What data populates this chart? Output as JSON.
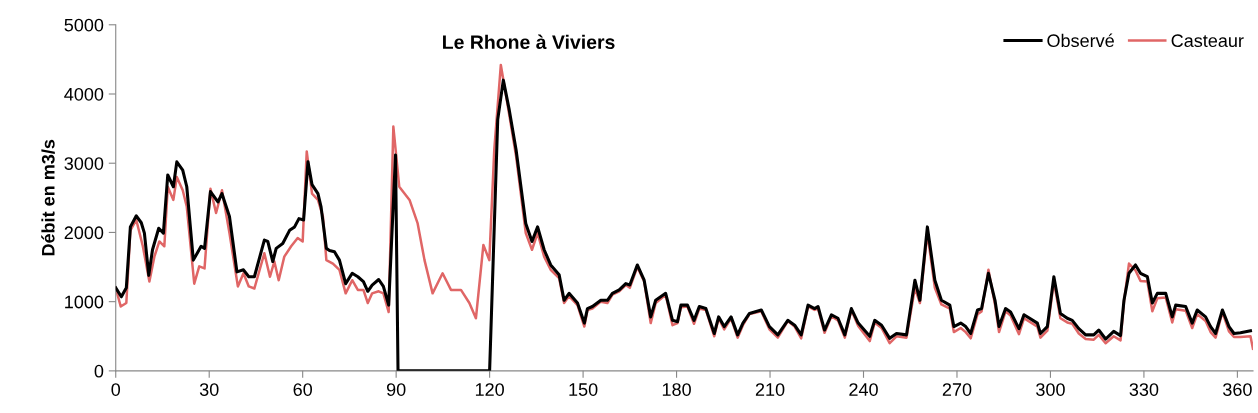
{
  "chart_data": {
    "type": "line",
    "title": "Le Rhone à Viviers",
    "ylabel": "Débit en m3/s",
    "xlim": [
      0,
      365
    ],
    "xticks": [
      0,
      30,
      60,
      90,
      120,
      150,
      180,
      210,
      240,
      270,
      300,
      330,
      360
    ],
    "ylim": [
      0,
      5000
    ],
    "yticks": [
      0,
      1000,
      2000,
      3000,
      4000,
      5000
    ],
    "grid": false,
    "legend": "top right",
    "marker": "none",
    "line_style": "solid",
    "series": [
      {
        "name": "Observé",
        "color": "#000000",
        "x": [
          0,
          1.8,
          3.4,
          4.7,
          6.6,
          8.2,
          9.2,
          10.6,
          11.8,
          13.8,
          15.3,
          16.7,
          18.5,
          19.6,
          21.5,
          22.8,
          24.9,
          27.4,
          28.5,
          30.4,
          32.8,
          34.1,
          36.5,
          38.9,
          41.0,
          42.7,
          44.5,
          47.7,
          48.8,
          50.4,
          51.5,
          53.6,
          55.8,
          57.4,
          58.8,
          60.3,
          61.7,
          63.0,
          64.9,
          65.9,
          67.6,
          68.6,
          70.2,
          71.8,
          73.8,
          75.9,
          77.7,
          79.5,
          80.9,
          82.3,
          84.4,
          85.9,
          87.6,
          89.8,
          90.6,
          120.0,
          122.6,
          124.4,
          126.3,
          128.5,
          131.6,
          133.6,
          135.4,
          137.5,
          139.6,
          142.3,
          143.9,
          145.5,
          148.2,
          150.4,
          151.4,
          153.0,
          155.7,
          157.8,
          159.4,
          161.6,
          163.7,
          165.0,
          167.4,
          169.6,
          171.7,
          173.3,
          176.5,
          178.7,
          180.3,
          181.4,
          183.5,
          185.6,
          187.3,
          189.4,
          192.1,
          193.5,
          195.3,
          197.5,
          199.6,
          201.3,
          203.4,
          207.2,
          209.8,
          212.5,
          215.7,
          217.9,
          220.0,
          222.2,
          224.3,
          225.4,
          227.5,
          229.7,
          231.8,
          234.0,
          236.1,
          238.3,
          242.0,
          243.6,
          245.8,
          248.4,
          250.6,
          253.8,
          256.5,
          258.1,
          260.5,
          262.9,
          265.0,
          267.7,
          269.0,
          271.2,
          272.8,
          274.4,
          276.6,
          277.9,
          280.1,
          282.2,
          283.5,
          285.6,
          287.2,
          289.9,
          291.5,
          295.8,
          296.8,
          299.0,
          301.1,
          303.2,
          305.4,
          307.0,
          309.1,
          311.3,
          313.9,
          315.5,
          317.7,
          320.3,
          322.5,
          323.6,
          325.2,
          327.3,
          328.9,
          331.1,
          332.7,
          334.3,
          337.0,
          339.1,
          340.2,
          343.4,
          345.5,
          347.1,
          349.8,
          351.4,
          353.0,
          355.2,
          357.3,
          358.9,
          361.0,
          364.2
        ],
        "values": [
          1200,
          1070,
          1200,
          2080,
          2240,
          2140,
          1990,
          1380,
          1750,
          2060,
          1990,
          2830,
          2660,
          3020,
          2900,
          2660,
          1600,
          1800,
          1770,
          2590,
          2440,
          2560,
          2230,
          1430,
          1460,
          1360,
          1360,
          1890,
          1870,
          1580,
          1770,
          1840,
          2030,
          2080,
          2200,
          2180,
          3020,
          2690,
          2560,
          2370,
          1770,
          1740,
          1720,
          1600,
          1260,
          1410,
          1360,
          1290,
          1150,
          1240,
          1320,
          1220,
          950,
          3120,
          0,
          0,
          3630,
          4200,
          3770,
          3190,
          2130,
          1870,
          2080,
          1750,
          1530,
          1390,
          1020,
          1120,
          980,
          690,
          900,
          930,
          1020,
          1020,
          1120,
          1170,
          1260,
          1240,
          1530,
          1310,
          780,
          1020,
          1120,
          730,
          710,
          950,
          950,
          730,
          930,
          900,
          540,
          780,
          640,
          780,
          520,
          690,
          830,
          880,
          640,
          520,
          730,
          660,
          520,
          950,
          900,
          930,
          590,
          810,
          760,
          520,
          900,
          690,
          500,
          730,
          660,
          470,
          540,
          520,
          1310,
          1020,
          2080,
          1310,
          1020,
          950,
          640,
          690,
          640,
          540,
          880,
          900,
          1410,
          1020,
          640,
          900,
          850,
          610,
          810,
          690,
          540,
          640,
          1360,
          830,
          760,
          730,
          610,
          520,
          520,
          590,
          460,
          570,
          510,
          1020,
          1410,
          1530,
          1410,
          1360,
          980,
          1120,
          1120,
          780,
          950,
          930,
          690,
          880,
          780,
          640,
          540,
          880,
          640,
          540,
          550,
          580
        ]
      },
      {
        "name": "Casteaur",
        "color": "#e06666",
        "x": [
          0,
          1.6,
          3.4,
          4.7,
          6.6,
          8.7,
          10.8,
          12.4,
          14.0,
          15.6,
          16.7,
          18.5,
          19.6,
          21.5,
          22.8,
          25.2,
          26.8,
          28.5,
          30.4,
          32.2,
          34.1,
          36.5,
          39.2,
          41.0,
          42.7,
          44.5,
          47.7,
          49.5,
          50.9,
          52.3,
          54.1,
          56.3,
          58.4,
          60.0,
          61.3,
          63.0,
          64.9,
          66.5,
          67.6,
          69.7,
          71.8,
          73.8,
          75.9,
          77.7,
          79.5,
          80.9,
          82.3,
          84.4,
          85.9,
          87.6,
          89.1,
          91.0,
          94.3,
          96.9,
          99.1,
          101.7,
          104.9,
          107.6,
          110.8,
          113.5,
          115.6,
          118.0,
          119.9,
          121.5,
          123.6,
          126.3,
          128.5,
          131.6,
          133.6,
          135.4,
          137.5,
          139.6,
          142.3,
          143.9,
          145.5,
          148.2,
          150.4,
          151.4,
          153.0,
          155.7,
          157.8,
          159.4,
          161.6,
          163.7,
          165.0,
          167.4,
          169.6,
          171.7,
          173.3,
          176.5,
          178.7,
          180.3,
          181.4,
          183.5,
          185.6,
          187.3,
          189.4,
          192.1,
          193.5,
          195.3,
          197.5,
          199.6,
          201.3,
          203.4,
          207.2,
          209.8,
          212.5,
          215.7,
          217.9,
          220.0,
          222.2,
          224.3,
          225.4,
          227.5,
          229.7,
          231.8,
          234.0,
          236.1,
          238.3,
          242.0,
          243.6,
          245.8,
          248.4,
          250.6,
          253.8,
          256.5,
          258.1,
          260.5,
          262.9,
          265.0,
          267.7,
          269.0,
          271.2,
          272.8,
          274.4,
          276.6,
          277.9,
          280.1,
          282.2,
          283.5,
          285.6,
          287.2,
          289.9,
          291.5,
          295.8,
          296.8,
          299.0,
          301.1,
          303.2,
          305.4,
          307.0,
          309.1,
          311.3,
          313.9,
          315.5,
          317.7,
          320.3,
          322.5,
          323.6,
          325.2,
          327.3,
          328.9,
          331.1,
          332.7,
          334.3,
          337.0,
          339.1,
          340.2,
          343.4,
          345.5,
          347.1,
          349.8,
          351.4,
          353.0,
          355.2,
          357.3,
          358.9,
          361.0,
          364.2,
          365.0
        ],
        "values": [
          1200,
          930,
          980,
          2030,
          2180,
          1800,
          1290,
          1650,
          1870,
          1800,
          2660,
          2470,
          2800,
          2610,
          2370,
          1260,
          1510,
          1480,
          2630,
          2280,
          2610,
          1990,
          1220,
          1410,
          1220,
          1190,
          1700,
          1360,
          1580,
          1310,
          1650,
          1800,
          1920,
          1870,
          3170,
          2560,
          2470,
          2230,
          1600,
          1550,
          1460,
          1120,
          1310,
          1170,
          1170,
          980,
          1120,
          1150,
          1120,
          850,
          3530,
          2660,
          2470,
          2130,
          1600,
          1120,
          1410,
          1170,
          1170,
          980,
          760,
          1820,
          1600,
          3200,
          4420,
          3700,
          3100,
          1990,
          1750,
          1990,
          1650,
          1460,
          1340,
          980,
          1080,
          950,
          640,
          880,
          900,
          1000,
          980,
          1100,
          1150,
          1240,
          1200,
          1500,
          1290,
          690,
          980,
          1100,
          660,
          690,
          920,
          930,
          680,
          900,
          880,
          500,
          760,
          600,
          760,
          480,
          660,
          820,
          860,
          600,
          480,
          720,
          640,
          470,
          930,
          880,
          900,
          550,
          790,
          730,
          480,
          880,
          650,
          430,
          700,
          620,
          400,
          500,
          480,
          1200,
          980,
          1990,
          1200,
          960,
          900,
          560,
          620,
          560,
          470,
          820,
          860,
          1460,
          960,
          560,
          860,
          800,
          530,
          760,
          640,
          480,
          580,
          1290,
          760,
          700,
          680,
          540,
          460,
          450,
          520,
          400,
          500,
          440,
          1000,
          1550,
          1450,
          1300,
          1290,
          860,
          1050,
          1060,
          700,
          890,
          870,
          620,
          820,
          720,
          560,
          480,
          850,
          570,
          490,
          490,
          500,
          320
        ]
      }
    ]
  }
}
